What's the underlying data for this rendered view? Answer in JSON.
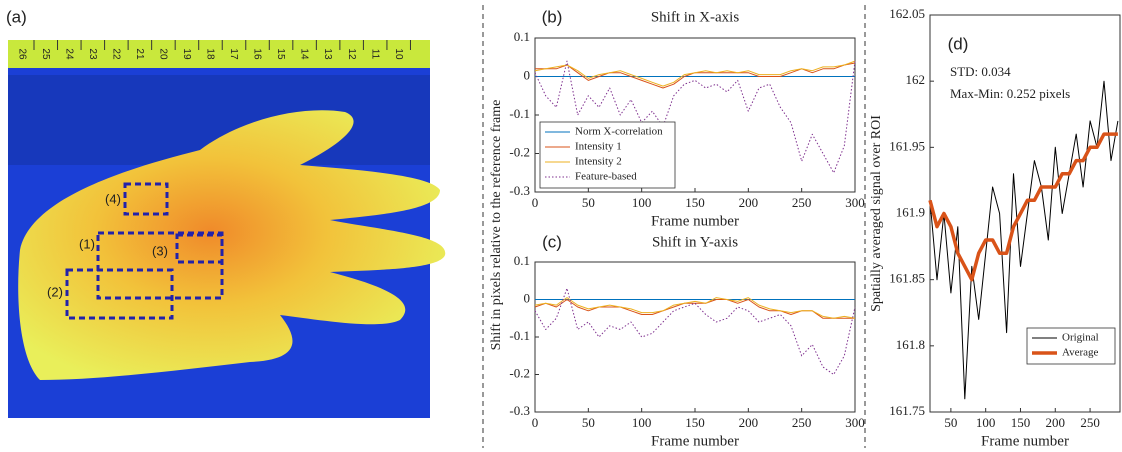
{
  "panel_a": {
    "label": "(a)",
    "roi_labels": [
      "(1)",
      "(2)",
      "(3)",
      "(4)"
    ],
    "ruler_labels": [
      "26",
      "25",
      "24",
      "23",
      "22",
      "21",
      "20",
      "19",
      "18",
      "17",
      "16",
      "15",
      "14",
      "13",
      "12",
      "11",
      "10"
    ]
  },
  "shared_ylabel": "Shift in pixels relative to the reference frame",
  "chart_data": [
    {
      "type": "line",
      "panel_label": "(b)",
      "title": "Shift in X-axis",
      "xlabel": "Frame number",
      "x": [
        0,
        10,
        20,
        30,
        40,
        50,
        60,
        70,
        80,
        90,
        100,
        110,
        120,
        130,
        140,
        150,
        160,
        170,
        180,
        190,
        200,
        210,
        220,
        230,
        240,
        250,
        260,
        270,
        280,
        290,
        300
      ],
      "xlim": [
        0,
        300
      ],
      "xticks": [
        0,
        50,
        100,
        150,
        200,
        250,
        300
      ],
      "ylim": [
        -0.3,
        0.1
      ],
      "yticks": [
        -0.3,
        -0.2,
        -0.1,
        0,
        0.1
      ],
      "legend": "lower left",
      "series": [
        {
          "name": "Norm X-correlation",
          "color": "#0072bd",
          "linestyle": "solid",
          "values": [
            0,
            0,
            0,
            0,
            0,
            0,
            0,
            0,
            0,
            0,
            0,
            0,
            0,
            0,
            0,
            0,
            0,
            0,
            0,
            0,
            0,
            0,
            0,
            0,
            0,
            0,
            0,
            0,
            0,
            0,
            0
          ]
        },
        {
          "name": "Intensity 1",
          "color": "#d95319",
          "linestyle": "solid",
          "values": [
            0.02,
            0.02,
            0.02,
            0.03,
            0.01,
            -0.01,
            0.0,
            0.01,
            0.01,
            0.0,
            -0.01,
            -0.02,
            -0.03,
            -0.02,
            0.0,
            0.01,
            0.01,
            0.01,
            0.01,
            0.01,
            0.01,
            0.0,
            0.0,
            0.0,
            0.01,
            0.02,
            0.01,
            0.02,
            0.02,
            0.03,
            0.035
          ]
        },
        {
          "name": "Intensity 2",
          "color": "#edb120",
          "linestyle": "solid",
          "values": [
            0.015,
            0.02,
            0.025,
            0.03,
            0.015,
            -0.005,
            0.005,
            0.01,
            0.015,
            0.005,
            -0.005,
            -0.015,
            -0.025,
            -0.015,
            0.005,
            0.01,
            0.015,
            0.01,
            0.015,
            0.01,
            0.015,
            0.005,
            0.005,
            0.005,
            0.015,
            0.02,
            0.015,
            0.025,
            0.025,
            0.03,
            0.04
          ]
        },
        {
          "name": "Feature-based",
          "color": "#7e2f8e",
          "linestyle": "dotted",
          "values": [
            0.01,
            -0.05,
            -0.08,
            0.04,
            -0.1,
            -0.05,
            -0.08,
            -0.03,
            -0.1,
            -0.06,
            -0.12,
            -0.09,
            -0.13,
            -0.05,
            -0.02,
            -0.01,
            -0.03,
            -0.02,
            -0.04,
            -0.01,
            -0.09,
            -0.03,
            -0.02,
            -0.08,
            -0.12,
            -0.22,
            -0.15,
            -0.2,
            -0.25,
            -0.18,
            0.04
          ]
        }
      ]
    },
    {
      "type": "line",
      "panel_label": "(c)",
      "title": "Shift in Y-axis",
      "xlabel": "Frame number",
      "x": [
        0,
        10,
        20,
        30,
        40,
        50,
        60,
        70,
        80,
        90,
        100,
        110,
        120,
        130,
        140,
        150,
        160,
        170,
        180,
        190,
        200,
        210,
        220,
        230,
        240,
        250,
        260,
        270,
        280,
        290,
        300
      ],
      "xlim": [
        0,
        300
      ],
      "xticks": [
        0,
        50,
        100,
        150,
        200,
        250,
        300
      ],
      "ylim": [
        -0.3,
        0.1
      ],
      "yticks": [
        -0.3,
        -0.2,
        -0.1,
        0,
        0.1
      ],
      "series": [
        {
          "name": "Norm X-correlation",
          "color": "#0072bd",
          "linestyle": "solid",
          "values": [
            0,
            0,
            0,
            0,
            0,
            0,
            0,
            0,
            0,
            0,
            0,
            0,
            0,
            0,
            0,
            0,
            0,
            0,
            0,
            0,
            0,
            0,
            0,
            0,
            0,
            0,
            0,
            0,
            0,
            0,
            0
          ]
        },
        {
          "name": "Intensity 1",
          "color": "#d95319",
          "linestyle": "solid",
          "values": [
            -0.02,
            -0.01,
            -0.02,
            0.0,
            -0.02,
            -0.03,
            -0.02,
            -0.02,
            -0.02,
            -0.03,
            -0.04,
            -0.04,
            -0.03,
            -0.02,
            -0.01,
            -0.01,
            -0.01,
            0.0,
            0.0,
            -0.01,
            0.0,
            -0.02,
            -0.03,
            -0.03,
            -0.04,
            -0.03,
            -0.03,
            -0.05,
            -0.05,
            -0.05,
            -0.05
          ]
        },
        {
          "name": "Intensity 2",
          "color": "#edb120",
          "linestyle": "solid",
          "values": [
            -0.015,
            -0.01,
            -0.015,
            0.005,
            -0.015,
            -0.025,
            -0.02,
            -0.015,
            -0.02,
            -0.025,
            -0.035,
            -0.035,
            -0.03,
            -0.015,
            -0.01,
            -0.005,
            -0.01,
            0.005,
            0.0,
            -0.005,
            0.005,
            -0.015,
            -0.025,
            -0.03,
            -0.035,
            -0.03,
            -0.03,
            -0.045,
            -0.05,
            -0.045,
            -0.05
          ]
        },
        {
          "name": "Feature-based",
          "color": "#7e2f8e",
          "linestyle": "dotted",
          "values": [
            -0.03,
            -0.08,
            -0.05,
            0.03,
            -0.08,
            -0.06,
            -0.1,
            -0.07,
            -0.08,
            -0.06,
            -0.1,
            -0.09,
            -0.06,
            -0.03,
            -0.02,
            -0.01,
            -0.04,
            -0.06,
            -0.05,
            -0.02,
            -0.03,
            -0.06,
            -0.05,
            -0.04,
            -0.07,
            -0.15,
            -0.12,
            -0.18,
            -0.2,
            -0.15,
            -0.02
          ]
        }
      ]
    },
    {
      "type": "line",
      "panel_label": "(d)",
      "xlabel": "Frame number",
      "ylabel": "Spatially averaged signal over ROI",
      "annotations": [
        "STD: 0.034",
        "Max-Min: 0.252 pixels"
      ],
      "x": [
        20,
        30,
        40,
        50,
        60,
        70,
        80,
        90,
        100,
        110,
        120,
        130,
        140,
        150,
        160,
        170,
        180,
        190,
        200,
        210,
        220,
        230,
        240,
        250,
        260,
        270,
        280,
        290
      ],
      "xlim": [
        20,
        293
      ],
      "xticks": [
        50,
        100,
        150,
        200,
        250
      ],
      "ylim": [
        161.75,
        162.05
      ],
      "yticks": [
        161.75,
        161.8,
        161.85,
        161.9,
        161.95,
        162,
        162.05
      ],
      "legend": "lower right",
      "series": [
        {
          "name": "Original",
          "color": "#000000",
          "linestyle": "solid",
          "linewidth": 1,
          "values": [
            161.91,
            161.85,
            161.9,
            161.84,
            161.89,
            161.76,
            161.86,
            161.82,
            161.87,
            161.92,
            161.9,
            161.81,
            161.93,
            161.86,
            161.9,
            161.94,
            161.92,
            161.88,
            161.95,
            161.9,
            161.93,
            161.96,
            161.92,
            161.97,
            161.95,
            162.0,
            161.94,
            161.97
          ]
        },
        {
          "name": "Average",
          "color": "#d95319",
          "linestyle": "solid",
          "linewidth": 3.5,
          "values": [
            161.91,
            161.89,
            161.9,
            161.89,
            161.87,
            161.86,
            161.85,
            161.87,
            161.88,
            161.88,
            161.87,
            161.87,
            161.89,
            161.9,
            161.91,
            161.91,
            161.92,
            161.92,
            161.92,
            161.93,
            161.93,
            161.94,
            161.94,
            161.95,
            161.95,
            161.96,
            161.96,
            161.96
          ]
        }
      ]
    }
  ]
}
